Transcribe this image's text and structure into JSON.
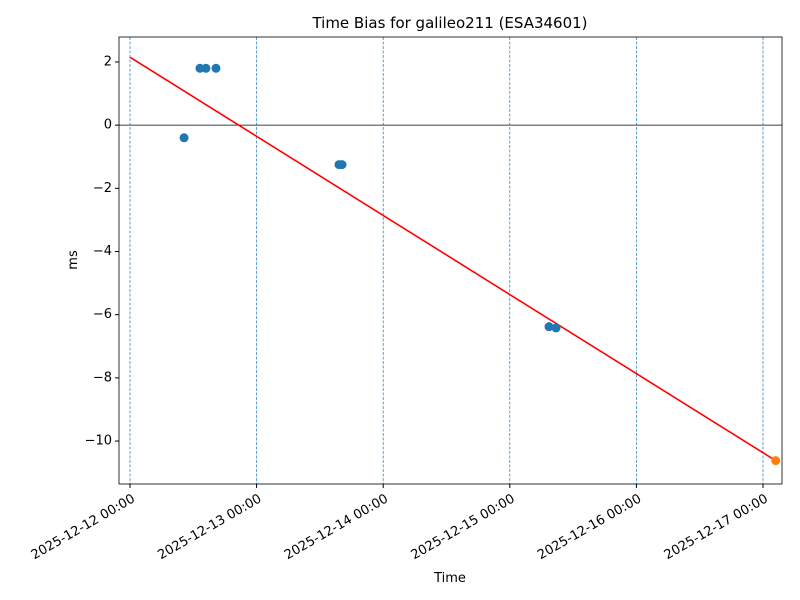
{
  "chart_data": {
    "type": "scatter",
    "title": "Time Bias for galileo211 (ESA34601)",
    "x_label": "Time",
    "y_label": "ms",
    "series": [
      {
        "type": "scatter",
        "color": "#1f77b4",
        "x": [
          "2025-12-12 10:15",
          "2025-12-12 13:16",
          "2025-12-12 14:24",
          "2025-12-12 16:18",
          "2025-12-13 15:37",
          "2025-12-13 16:12",
          "2025-12-15 07:26",
          "2025-12-15 08:46"
        ],
        "values": [
          -0.4,
          1.8,
          1.8,
          1.8,
          -1.25,
          -1.25,
          -6.38,
          -6.42
        ]
      },
      {
        "type": "scatter",
        "color": "#ff7f0e",
        "x": [
          "2025-12-17 02:24"
        ],
        "values": [
          -10.62
        ]
      },
      {
        "type": "line",
        "color": "#ff0000",
        "x": [
          "2025-12-12 00:00",
          "2025-12-17 02:24"
        ],
        "values": [
          2.15,
          -10.62
        ]
      }
    ],
    "hline": 0,
    "xlim": [
      "2025-12-11 21:55",
      "2025-12-17 03:36"
    ],
    "xticks": [
      "2025-12-12 00:00",
      "2025-12-13 00:00",
      "2025-12-14 00:00",
      "2025-12-15 00:00",
      "2025-12-16 00:00",
      "2025-12-17 00:00"
    ],
    "ylim": [
      -11.36,
      2.79
    ],
    "yticks": [
      {
        "value": -10,
        "label": "−10"
      },
      {
        "value": -8,
        "label": "−8"
      },
      {
        "value": -6,
        "label": "−6"
      },
      {
        "value": -4,
        "label": "−4"
      },
      {
        "value": -2,
        "label": "−2"
      },
      0,
      2
    ],
    "xgrid": true,
    "grid_color": "#1f77b4"
  }
}
